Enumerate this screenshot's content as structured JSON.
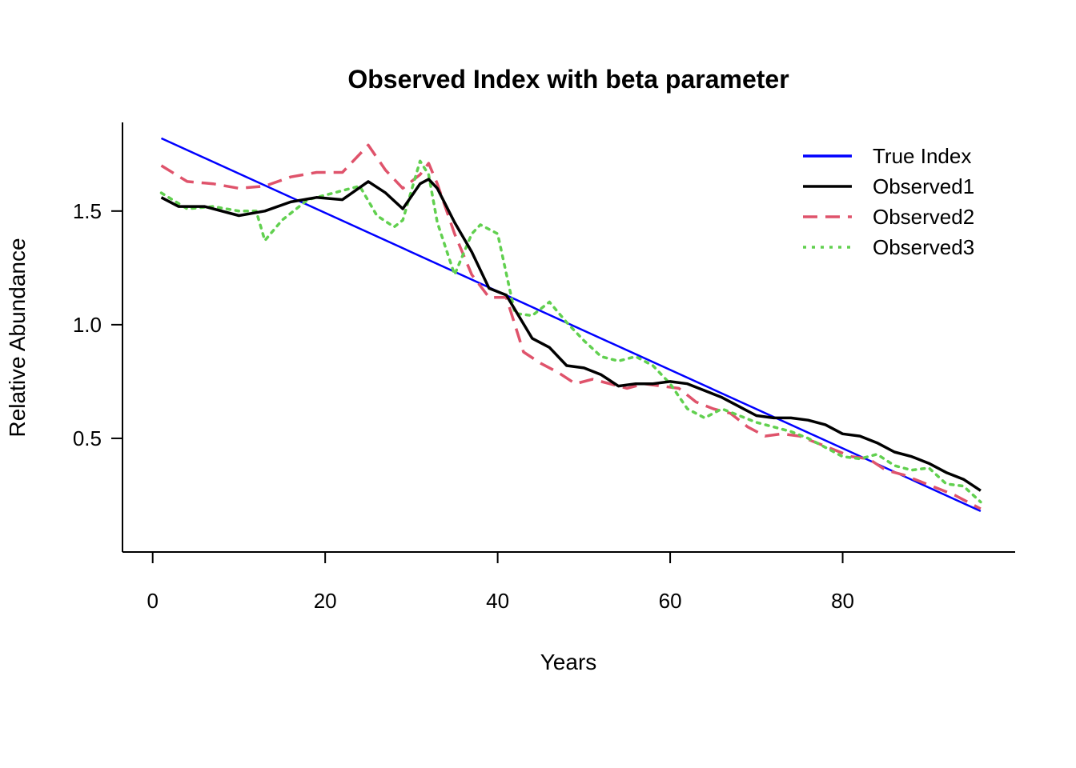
{
  "chart_data": {
    "type": "line",
    "title": "Observed Index with beta parameter",
    "xlabel": "Years",
    "ylabel": "Relative Abundance",
    "xlim": [
      -3.5,
      100
    ],
    "ylim": [
      0.0,
      1.89
    ],
    "x_ticks": [
      0,
      20,
      40,
      60,
      80
    ],
    "x_tick_labels": [
      "0",
      "20",
      "40",
      "60",
      "80"
    ],
    "y_ticks": [
      0.5,
      1.0,
      1.5
    ],
    "y_tick_labels": [
      "0.5",
      "1.0",
      "1.5"
    ],
    "grid": false,
    "legend_position": "top-right",
    "series": [
      {
        "name": "True Index",
        "color": "#0000FF",
        "dash": "solid",
        "x": [
          1,
          96
        ],
        "y": [
          1.82,
          0.18
        ]
      },
      {
        "name": "Observed1",
        "color": "#000000",
        "dash": "solid",
        "x": [
          1,
          3,
          6,
          10,
          13,
          16,
          19,
          22,
          25,
          27,
          29,
          31,
          32,
          33,
          35,
          37,
          39,
          41,
          44,
          46,
          48,
          50,
          52,
          54,
          56,
          58,
          60,
          62,
          64,
          66,
          68,
          70,
          72,
          74,
          76,
          78,
          80,
          82,
          84,
          86,
          88,
          90,
          92,
          94,
          96
        ],
        "y": [
          1.56,
          1.52,
          1.52,
          1.48,
          1.5,
          1.54,
          1.56,
          1.55,
          1.63,
          1.58,
          1.51,
          1.62,
          1.64,
          1.6,
          1.45,
          1.32,
          1.16,
          1.13,
          0.94,
          0.9,
          0.82,
          0.81,
          0.78,
          0.73,
          0.74,
          0.74,
          0.75,
          0.74,
          0.71,
          0.68,
          0.64,
          0.6,
          0.59,
          0.59,
          0.58,
          0.56,
          0.52,
          0.51,
          0.48,
          0.44,
          0.42,
          0.39,
          0.35,
          0.32,
          0.27
        ]
      },
      {
        "name": "Observed2",
        "color": "#DF536B",
        "dash": "dashed",
        "x": [
          1,
          4,
          7,
          10,
          13,
          16,
          19,
          22,
          25,
          27,
          29,
          31,
          32,
          33,
          35,
          37,
          39,
          41,
          43,
          45,
          47,
          49,
          51,
          53,
          55,
          57,
          59,
          61,
          63,
          65,
          67,
          69,
          71,
          73,
          75,
          77,
          79,
          81,
          83,
          85,
          87,
          89,
          91,
          93,
          96
        ],
        "y": [
          1.7,
          1.63,
          1.62,
          1.6,
          1.61,
          1.65,
          1.67,
          1.67,
          1.79,
          1.68,
          1.6,
          1.66,
          1.71,
          1.62,
          1.4,
          1.22,
          1.12,
          1.12,
          0.88,
          0.83,
          0.79,
          0.74,
          0.76,
          0.74,
          0.72,
          0.74,
          0.73,
          0.72,
          0.66,
          0.63,
          0.61,
          0.55,
          0.51,
          0.52,
          0.51,
          0.48,
          0.45,
          0.42,
          0.41,
          0.36,
          0.34,
          0.31,
          0.28,
          0.25,
          0.19
        ]
      },
      {
        "name": "Observed3",
        "color": "#61D04F",
        "dash": "dotted",
        "x": [
          1,
          4,
          7,
          10,
          12,
          13,
          15,
          18,
          21,
          24,
          26,
          28,
          29,
          31,
          32,
          33,
          35,
          37,
          38,
          40,
          42,
          44,
          46,
          48,
          50,
          52,
          54,
          56,
          58,
          60,
          62,
          64,
          66,
          68,
          70,
          72,
          74,
          76,
          78,
          80,
          82,
          84,
          86,
          88,
          90,
          92,
          94,
          96
        ],
        "y": [
          1.58,
          1.51,
          1.52,
          1.5,
          1.5,
          1.37,
          1.46,
          1.55,
          1.58,
          1.61,
          1.48,
          1.43,
          1.46,
          1.72,
          1.66,
          1.45,
          1.22,
          1.4,
          1.44,
          1.4,
          1.05,
          1.04,
          1.1,
          1.01,
          0.93,
          0.86,
          0.84,
          0.86,
          0.82,
          0.74,
          0.63,
          0.59,
          0.63,
          0.6,
          0.57,
          0.55,
          0.53,
          0.5,
          0.46,
          0.42,
          0.41,
          0.43,
          0.38,
          0.36,
          0.37,
          0.3,
          0.29,
          0.22
        ]
      }
    ]
  }
}
